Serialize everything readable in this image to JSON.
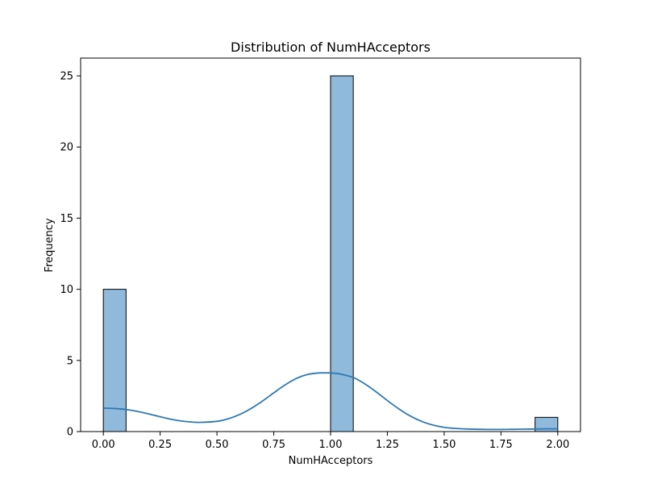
{
  "chart_data": {
    "type": "bar",
    "title": "Distribution of NumHAcceptors",
    "xlabel": "NumHAcceptors",
    "ylabel": "Frequency",
    "xlim": [
      -0.1,
      2.1
    ],
    "ylim": [
      0,
      26.25
    ],
    "xticks": [
      0.0,
      0.25,
      0.5,
      0.75,
      1.0,
      1.25,
      1.5,
      1.75,
      2.0
    ],
    "xtick_labels": [
      "0.00",
      "0.25",
      "0.50",
      "0.75",
      "1.00",
      "1.25",
      "1.50",
      "1.75",
      "2.00"
    ],
    "yticks": [
      0,
      5,
      10,
      15,
      20,
      25
    ],
    "ytick_labels": [
      "0",
      "5",
      "10",
      "15",
      "20",
      "25"
    ],
    "grid": false,
    "bins": [
      {
        "x0": 0.0,
        "x1": 0.1,
        "count": 10
      },
      {
        "x0": 0.9,
        "x1": 1.0,
        "count": 0
      },
      {
        "x0": 1.0,
        "x1": 1.1,
        "count": 25
      },
      {
        "x0": 1.9,
        "x1": 2.0,
        "count": 1
      }
    ],
    "kde": {
      "x": [
        0.0,
        0.05,
        0.1,
        0.15,
        0.2,
        0.25,
        0.3,
        0.35,
        0.4,
        0.43,
        0.5,
        0.55,
        0.6,
        0.65,
        0.7,
        0.75,
        0.8,
        0.85,
        0.9,
        0.95,
        1.0,
        1.03,
        1.05,
        1.1,
        1.15,
        1.2,
        1.25,
        1.3,
        1.35,
        1.4,
        1.45,
        1.5,
        1.55,
        1.6,
        1.65,
        1.7,
        1.75,
        1.8,
        1.85,
        1.9,
        1.95,
        2.0
      ],
      "y": [
        1.65,
        1.62,
        1.55,
        1.42,
        1.24,
        1.04,
        0.86,
        0.73,
        0.66,
        0.65,
        0.72,
        0.9,
        1.2,
        1.62,
        2.14,
        2.72,
        3.28,
        3.74,
        4.02,
        4.12,
        4.12,
        4.08,
        4.02,
        3.8,
        3.36,
        2.8,
        2.18,
        1.6,
        1.1,
        0.72,
        0.46,
        0.3,
        0.22,
        0.18,
        0.16,
        0.15,
        0.15,
        0.16,
        0.17,
        0.18,
        0.19,
        0.19
      ]
    },
    "colors": {
      "bar_fill": "#8fbadb",
      "bar_edge": "#000000",
      "kde_line": "#2e79b5"
    }
  }
}
